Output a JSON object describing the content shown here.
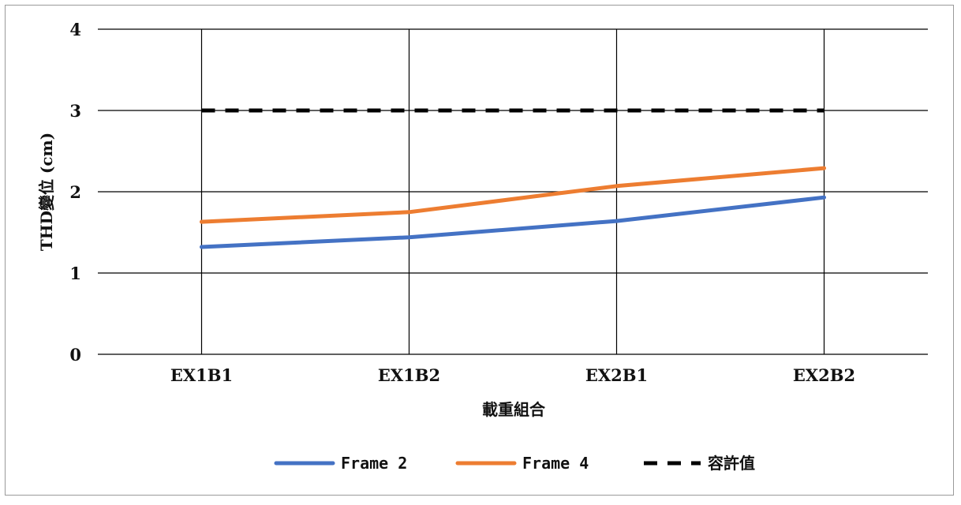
{
  "chart_data": {
    "type": "line",
    "title": "",
    "xlabel": "載重組合",
    "ylabel": "THD變位 (cm)",
    "categories": [
      "EX1B1",
      "EX1B2",
      "EX2B1",
      "EX2B2"
    ],
    "ylim": [
      0,
      4
    ],
    "yticks": [
      0,
      1,
      2,
      3,
      4
    ],
    "grid": true,
    "legend_position": "bottom",
    "series": [
      {
        "name": "Frame 2",
        "values": [
          1.32,
          1.44,
          1.64,
          1.93
        ],
        "color": "#4472C4",
        "style": "solid"
      },
      {
        "name": "Frame 4",
        "values": [
          1.63,
          1.75,
          2.07,
          2.29
        ],
        "color": "#ED7D31",
        "style": "solid"
      },
      {
        "name": "容許值",
        "values": [
          3,
          3,
          3,
          3
        ],
        "color": "#000000",
        "style": "dashed"
      }
    ]
  }
}
